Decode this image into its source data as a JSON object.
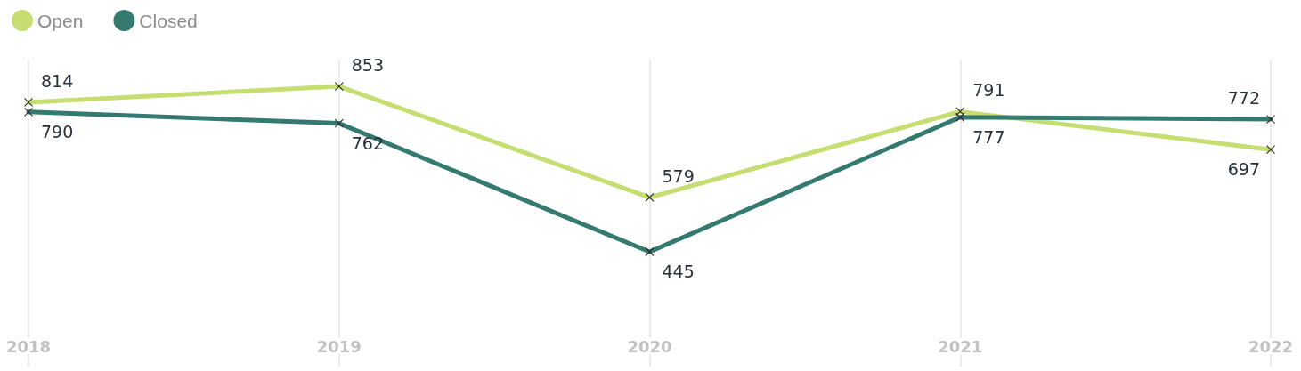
{
  "chart_data": {
    "type": "line",
    "categories": [
      "2018",
      "2019",
      "2020",
      "2021",
      "2022"
    ],
    "series": [
      {
        "name": "Open",
        "color": "#c5dd71",
        "values": [
          814,
          853,
          579,
          791,
          697
        ]
      },
      {
        "name": "Closed",
        "color": "#347a71",
        "values": [
          790,
          762,
          445,
          777,
          772
        ]
      }
    ],
    "data_labels": true,
    "legend": "top left",
    "grid": "x",
    "tick_labels": "x",
    "marker": "cross",
    "line_style": "solid"
  }
}
